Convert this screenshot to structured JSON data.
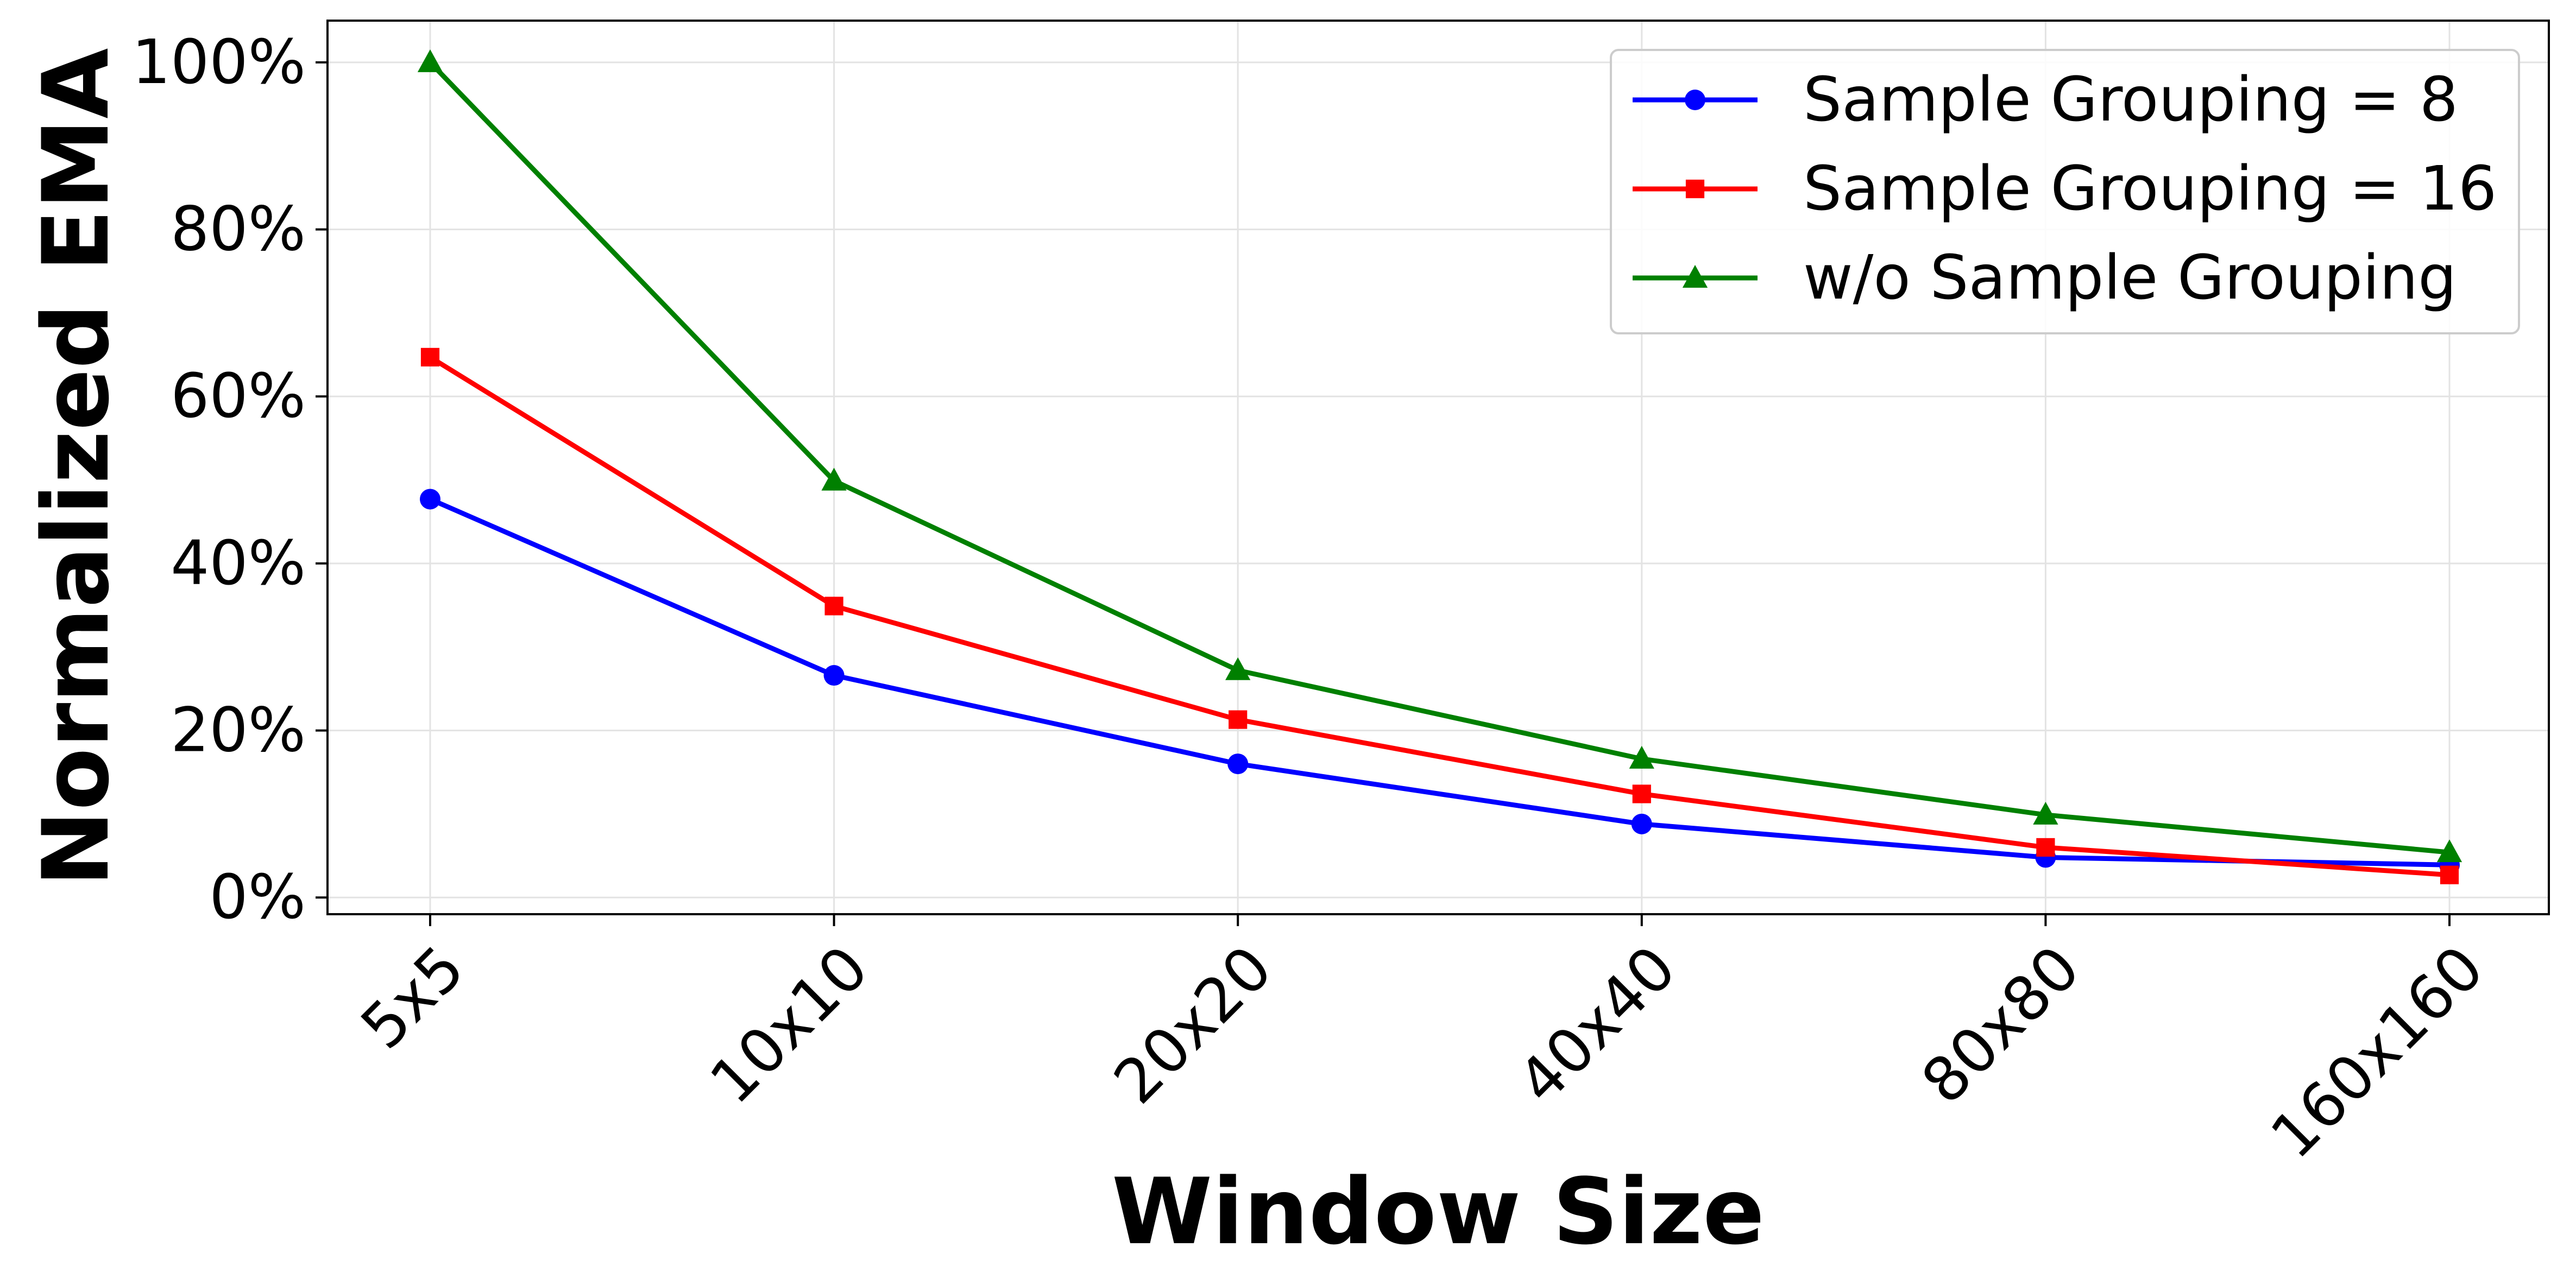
{
  "chart_data": {
    "type": "line",
    "title": "",
    "xlabel": "Window Size",
    "ylabel": "Normalized EMA",
    "categories": [
      "5x5",
      "10x10",
      "20x20",
      "40x40",
      "80x80",
      "160x160"
    ],
    "ylim": [
      -2,
      105
    ],
    "yticks": [
      0,
      20,
      40,
      60,
      80,
      100
    ],
    "ytick_format": "percent",
    "grid": true,
    "legend_position": "top-right",
    "series": [
      {
        "name": "Sample Grouping = 8",
        "color": "#0000ff",
        "marker": "circle",
        "values": [
          47.7,
          26.6,
          16.0,
          8.8,
          4.8,
          3.9
        ]
      },
      {
        "name": "Sample Grouping = 16",
        "color": "#ff0000",
        "marker": "square",
        "values": [
          64.7,
          34.9,
          21.3,
          12.4,
          6.0,
          2.7
        ]
      },
      {
        "name": "w/o Sample Grouping",
        "color": "#008000",
        "marker": "triangle",
        "values": [
          100.0,
          49.9,
          27.2,
          16.6,
          9.9,
          5.4
        ]
      }
    ]
  }
}
